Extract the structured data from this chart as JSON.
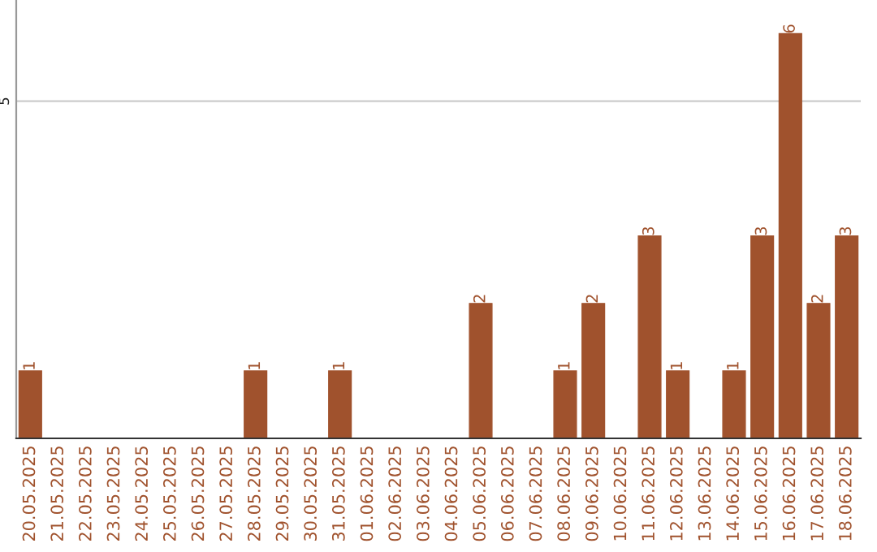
{
  "chart_data": {
    "type": "bar",
    "categories": [
      "20.05.2025",
      "21.05.2025",
      "22.05.2025",
      "23.05.2025",
      "24.05.2025",
      "25.05.2025",
      "26.05.2025",
      "27.05.2025",
      "28.05.2025",
      "29.05.2025",
      "30.05.2025",
      "31.05.2025",
      "01.06.2025",
      "02.06.2025",
      "03.06.2025",
      "04.06.2025",
      "05.06.2025",
      "06.06.2025",
      "07.06.2025",
      "08.06.2025",
      "09.06.2025",
      "10.06.2025",
      "11.06.2025",
      "12.06.2025",
      "13.06.2025",
      "14.06.2025",
      "15.06.2025",
      "16.06.2025",
      "17.06.2025",
      "18.06.2025"
    ],
    "values": [
      1,
      0,
      0,
      0,
      0,
      0,
      0,
      0,
      1,
      0,
      0,
      1,
      0,
      0,
      0,
      0,
      2,
      0,
      0,
      1,
      2,
      0,
      3,
      1,
      0,
      1,
      3,
      6,
      2,
      3
    ],
    "value_labels": [
      "1",
      null,
      null,
      null,
      null,
      null,
      null,
      null,
      "1",
      null,
      null,
      "1",
      null,
      null,
      null,
      null,
      "2",
      null,
      null,
      "1",
      "2",
      null,
      "3",
      "1",
      null,
      "1",
      "3",
      "6",
      "2",
      "3"
    ],
    "color": "#a0522d",
    "ylim": [
      0,
      6.5
    ],
    "yticks": [
      5
    ],
    "grid": "y",
    "legend": false
  }
}
